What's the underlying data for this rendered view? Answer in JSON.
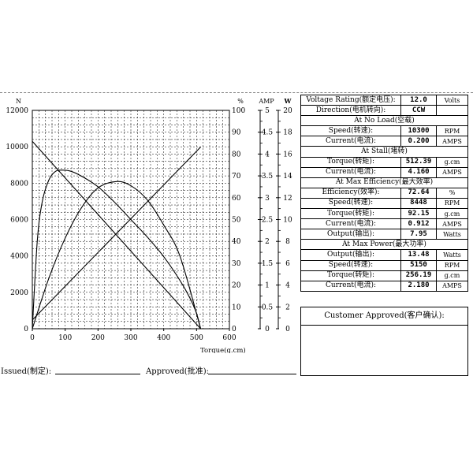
{
  "chart_data": {
    "type": "line",
    "xlabel": "Torque(g.cm)",
    "x_ticks": [
      "0",
      "100",
      "200",
      "300",
      "400",
      "500",
      "600"
    ],
    "xlim": [
      0,
      600
    ],
    "axes": {
      "speed": {
        "unit": "N",
        "ticks": [
          "0",
          "2000",
          "4000",
          "6000",
          "8000",
          "10000",
          "12000"
        ],
        "range": [
          0,
          12000
        ]
      },
      "efficiency": {
        "unit": "%",
        "ticks": [
          "0",
          "10",
          "20",
          "30",
          "40",
          "50",
          "60",
          "70",
          "80",
          "90",
          "100"
        ],
        "range": [
          0,
          100
        ]
      },
      "current": {
        "unit": "AMP",
        "ticks": [
          "0",
          "0.5",
          "1",
          "1.5",
          "2",
          "2.5",
          "3",
          "3.5",
          "4",
          "4.5",
          "5"
        ],
        "range": [
          0,
          5
        ]
      },
      "power": {
        "unit": "W",
        "ticks": [
          "0",
          "2",
          "4",
          "6",
          "8",
          "10",
          "12",
          "14",
          "16",
          "18",
          "20"
        ],
        "range": [
          0,
          20
        ]
      }
    },
    "series": [
      {
        "axis": "speed",
        "x": [
          0,
          512.39
        ],
        "y": [
          10300,
          0
        ]
      },
      {
        "axis": "current",
        "x": [
          0,
          512.39
        ],
        "y": [
          0.2,
          4.16
        ]
      },
      {
        "axis": "efficiency",
        "x": [
          0,
          15,
          30,
          50,
          70,
          92.15,
          120,
          160,
          200,
          250,
          300,
          350,
          400,
          450,
          480,
          500,
          512.39
        ],
        "y": [
          0,
          40,
          58,
          68,
          72,
          72.64,
          72,
          69,
          65,
          58,
          50,
          42,
          33,
          22,
          14,
          7,
          0
        ]
      },
      {
        "axis": "power",
        "x": [
          0,
          50,
          100,
          150,
          200,
          256.19,
          300,
          350,
          400,
          450,
          512.39
        ],
        "y": [
          0,
          4.6,
          8.3,
          11.1,
          12.9,
          13.48,
          13.1,
          11.8,
          9.5,
          6.6,
          0
        ]
      }
    ],
    "grid": true
  },
  "specs": {
    "rows": [
      {
        "type": "row",
        "label": "Voltage Rating(额定电压):",
        "value": "12.0",
        "unit": "Volts"
      },
      {
        "type": "row",
        "label": "Direction(电机转向):",
        "value": "CCW",
        "unit": ""
      },
      {
        "type": "section",
        "label": "At No Load(空载)"
      },
      {
        "type": "row",
        "label": "Speed(转速):",
        "value": "10300",
        "unit": "RPM"
      },
      {
        "type": "row",
        "label": "Current(电流):",
        "value": "0.200",
        "unit": "AMPS"
      },
      {
        "type": "section",
        "label": "At Stall(堵转)"
      },
      {
        "type": "row",
        "label": "Torque(转矩):",
        "value": "512.39",
        "unit": "g.cm"
      },
      {
        "type": "row",
        "label": "Current(电流):",
        "value": "4.160",
        "unit": "AMPS"
      },
      {
        "type": "section",
        "label": "At Max Efficiency(最大效率)"
      },
      {
        "type": "row",
        "label": "Efficiency(效率):",
        "value": "72.64",
        "unit": "%"
      },
      {
        "type": "row",
        "label": "Speed(转速):",
        "value": "8448",
        "unit": "RPM"
      },
      {
        "type": "row",
        "label": "Torque(转矩):",
        "value": "92.15",
        "unit": "g.cm"
      },
      {
        "type": "row",
        "label": "Current(电流):",
        "value": "0.912",
        "unit": "AMPS"
      },
      {
        "type": "row",
        "label": "Output(输出):",
        "value": "7.95",
        "unit": "Watts"
      },
      {
        "type": "section",
        "label": "At Max Power(最大功率)"
      },
      {
        "type": "row",
        "label": "Output(输出):",
        "value": "13.48",
        "unit": "Watts"
      },
      {
        "type": "row",
        "label": "Speed(转速):",
        "value": "5150",
        "unit": "RPM"
      },
      {
        "type": "row",
        "label": "Torque(转矩):",
        "value": "256.19",
        "unit": "g.cm"
      },
      {
        "type": "row",
        "label": "Current(电流):",
        "value": "2.180",
        "unit": "AMPS"
      }
    ]
  },
  "customer": {
    "title": "Customer Approved(客户确认):"
  },
  "footer": {
    "issued": "Issued(制定):",
    "approved": "Approved(批准):"
  }
}
